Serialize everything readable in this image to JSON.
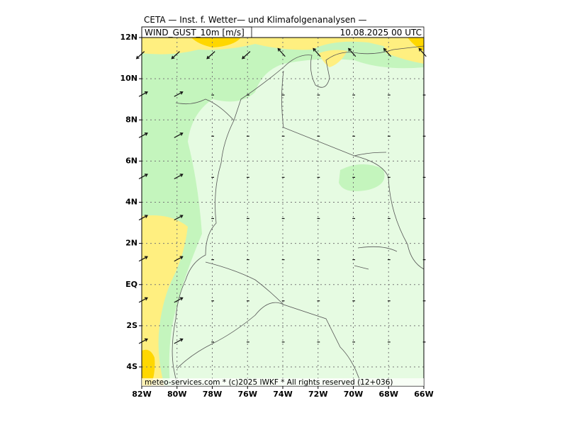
{
  "header": {
    "title": "CETA — Inst. f. Wetter— und Klimafolgenanalysen —",
    "variable": "WIND_GUST_10m [m/s]",
    "datetime": "10.08.2025 00 UTC"
  },
  "map": {
    "lat_labels": [
      "12N",
      "10N",
      "8N",
      "6N",
      "4N",
      "2N",
      "EQ",
      "2S",
      "4S"
    ],
    "lon_labels": [
      "82W",
      "80W",
      "78W",
      "76W",
      "74W",
      "72W",
      "70W",
      "68W",
      "66W"
    ]
  },
  "footer": {
    "copyright": "meteo-services.com * (c)2025 IWKF * All rights reserved (12+036)"
  }
}
